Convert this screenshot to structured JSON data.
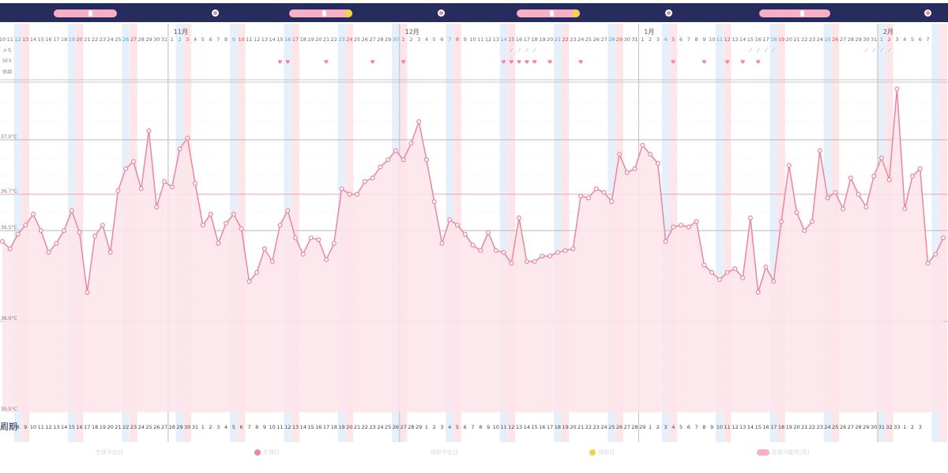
{
  "colors": {
    "top_bar": "#262d5e",
    "line": "#e8879f",
    "fill": "#fde4ea",
    "weekend_blue": "#e6f0fb",
    "weekend_pink": "#fde6ea",
    "grid": "#b8b8b8",
    "coverline": "#e7a6b8",
    "sunday": "#e0473f",
    "saturday": "#4da3e0",
    "memo_icon": "#5cb6e3",
    "sex_icon": "#ef85a8",
    "ovulation_pill": "#f7afc6",
    "accent_yellow": "#f3d24a"
  },
  "row_labels": {
    "memo": "メモ",
    "sex": "SEX",
    "condition": "体調"
  },
  "cycle_label": "周期",
  "months": [
    "11月",
    "12月",
    "1月",
    "2月"
  ],
  "chart_data": {
    "type": "line",
    "y_axis": {
      "ticks": [
        "37.0°C",
        "36.7°C",
        "36.5°C",
        "36.0°C",
        "35.5°C"
      ],
      "ylim": [
        35.5,
        37.3
      ]
    },
    "x_start_date": "10/10",
    "values": [
      36.44,
      36.4,
      36.48,
      36.53,
      36.59,
      36.5,
      36.38,
      36.43,
      36.5,
      36.61,
      36.49,
      36.16,
      36.47,
      36.53,
      36.38,
      36.72,
      36.84,
      36.88,
      36.73,
      37.05,
      36.63,
      36.77,
      36.74,
      36.95,
      37.01,
      36.76,
      36.53,
      36.59,
      36.43,
      36.54,
      36.59,
      36.51,
      36.22,
      36.27,
      36.4,
      36.33,
      36.53,
      36.61,
      36.46,
      36.37,
      36.46,
      36.45,
      36.34,
      36.43,
      36.73,
      36.7,
      36.7,
      36.77,
      36.79,
      36.85,
      36.89,
      36.94,
      36.89,
      36.98,
      37.1,
      36.89,
      36.66,
      36.43,
      36.56,
      36.53,
      36.48,
      36.42,
      36.39,
      36.49,
      36.39,
      36.38,
      36.32,
      36.57,
      36.33,
      36.33,
      36.36,
      36.36,
      36.38,
      36.39,
      36.4,
      36.69,
      36.68,
      36.73,
      36.71,
      36.66,
      36.92,
      36.82,
      36.84,
      36.97,
      36.92,
      36.87,
      36.44,
      36.52,
      36.53,
      36.52,
      36.55,
      36.31,
      36.27,
      36.23,
      36.27,
      36.29,
      36.24,
      36.57,
      36.16,
      36.3,
      36.22,
      36.55,
      36.86,
      36.6,
      36.5,
      36.55,
      36.94,
      36.68,
      36.71,
      36.62,
      36.79,
      36.7,
      36.63,
      36.8,
      36.9,
      36.78,
      37.28,
      36.62,
      36.8,
      36.84,
      36.32,
      36.37,
      36.46
    ],
    "x_labels": [
      "10",
      "11",
      "12",
      "13",
      "14",
      "15",
      "16",
      "17",
      "18",
      "19",
      "20",
      "21",
      "22",
      "23",
      "24",
      "25",
      "26",
      "27",
      "28",
      "29",
      "30",
      "31",
      "1",
      "2",
      "3",
      "4",
      "5",
      "6",
      "7",
      "8",
      "9",
      "10",
      "11",
      "12",
      "13",
      "14",
      "15",
      "16",
      "17",
      "18",
      "19",
      "20",
      "21",
      "22",
      "23",
      "24",
      "25",
      "26",
      "27",
      "28",
      "29",
      "30",
      "1",
      "2",
      "3",
      "4",
      "5",
      "6",
      "7",
      "8",
      "9",
      "10",
      "11",
      "12",
      "13",
      "14",
      "15",
      "16",
      "17",
      "18",
      "19",
      "20",
      "21",
      "22",
      "23",
      "24",
      "25",
      "26",
      "27",
      "28",
      "29",
      "30",
      "31",
      "1",
      "2",
      "3",
      "4",
      "5",
      "6",
      "7",
      "8",
      "9",
      "10",
      "11",
      "12",
      "13",
      "14",
      "15",
      "16",
      "17",
      "18",
      "19",
      "20",
      "21",
      "22",
      "23",
      "24",
      "25",
      "26",
      "27",
      "28",
      "29",
      "30",
      "31",
      "1",
      "2",
      "3",
      "4",
      "5",
      "6",
      "7"
    ],
    "cycle_labels": [
      "6",
      "7",
      "8",
      "9",
      "10",
      "11",
      "12",
      "13",
      "14",
      "15",
      "16",
      "17",
      "18",
      "19",
      "20",
      "21",
      "22",
      "23",
      "24",
      "25",
      "26",
      "27",
      "28",
      "29",
      "30",
      "31",
      "1",
      "2",
      "3",
      "4",
      "5",
      "6",
      "7",
      "8",
      "9",
      "10",
      "11",
      "12",
      "13",
      "14",
      "15",
      "16",
      "17",
      "18",
      "19",
      "20",
      "21",
      "22",
      "23",
      "24",
      "25",
      "26",
      "27",
      "28",
      "29",
      "1",
      "2",
      "3",
      "4",
      "5",
      "6",
      "7",
      "8",
      "9",
      "10",
      "11",
      "12",
      "13",
      "14",
      "15",
      "16",
      "17",
      "18",
      "19",
      "20",
      "21",
      "22",
      "23",
      "24",
      "25",
      "26",
      "27",
      "28",
      "29",
      "1",
      "2",
      "3",
      "4",
      "5",
      "6",
      "7",
      "8",
      "9",
      "10",
      "11",
      "12",
      "13",
      "14",
      "15",
      "16",
      "17",
      "18",
      "19",
      "20",
      "21",
      "22",
      "23",
      "24",
      "25",
      "26",
      "27",
      "28",
      "29",
      "30",
      "31",
      "32",
      "33",
      "1",
      "2",
      "3"
    ],
    "memo_days": [
      66,
      67,
      68,
      69,
      97,
      98,
      99,
      100,
      112,
      113,
      114,
      115
    ],
    "sex_days": [
      36,
      37,
      42,
      48,
      52,
      65,
      66,
      67,
      68,
      69,
      71,
      75,
      87,
      91,
      94,
      96,
      98
    ]
  },
  "legend": [
    {
      "label": "生理予定日",
      "color": "#ffffff"
    },
    {
      "label": "生理日",
      "color": "#e58aa5"
    },
    {
      "label": "排卵予定日",
      "color": "#ffffff"
    },
    {
      "label": "排卵日",
      "color": "#f3d24a"
    },
    {
      "label": "妊娠可能性(高)",
      "color": "#f7afc6"
    }
  ]
}
